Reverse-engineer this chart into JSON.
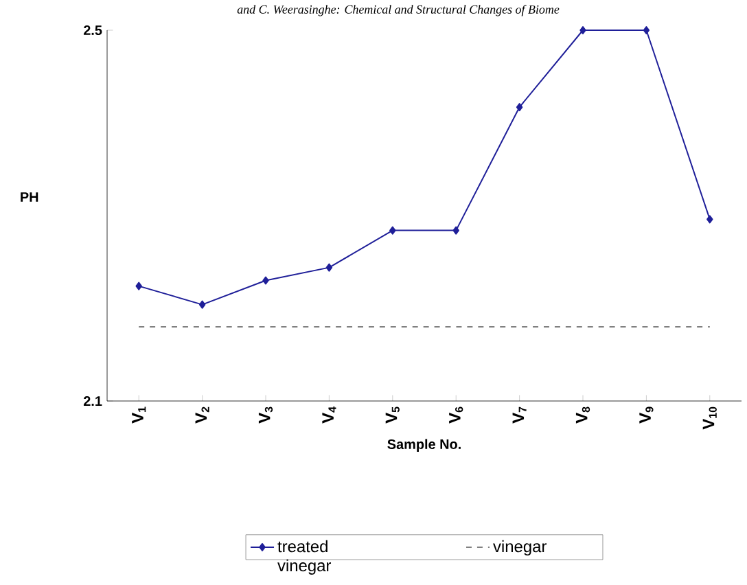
{
  "chart_data": {
    "type": "line",
    "ylabel": "PH",
    "xlabel": "Sample No.",
    "annotations": [
      "and C. Weerasinghe: Chemical and Structural Changes of Biome"
    ],
    "categories": [
      "V$_{1}$",
      "V$_{2}$",
      "V$_{3}$",
      "V$_{4}$",
      "V$_{5}$",
      "V$_{6}$",
      "V$_{7}$",
      "V$_{8}$",
      "V$_{9}$",
      "V$_{10}$"
    ],
    "ylim": [
      2.1,
      2.5
    ],
    "yticks": [
      2.1,
      2.5
    ],
    "legend": "bottom",
    "series": [
      {
        "name": "treated vinegar",
        "color": "#1f1f99",
        "marker": "diamond",
        "line_style": "solid",
        "values": [
          2.224,
          2.204,
          2.23,
          2.244,
          2.284,
          2.284,
          2.417,
          2.5,
          2.5,
          2.296
        ]
      },
      {
        "name": "vinegar",
        "color": "#808080",
        "marker": "none",
        "line_style": "dashed",
        "values": [
          2.18,
          2.18,
          2.18,
          2.18,
          2.18,
          2.18,
          2.18,
          2.18,
          2.18,
          2.18
        ]
      }
    ]
  }
}
